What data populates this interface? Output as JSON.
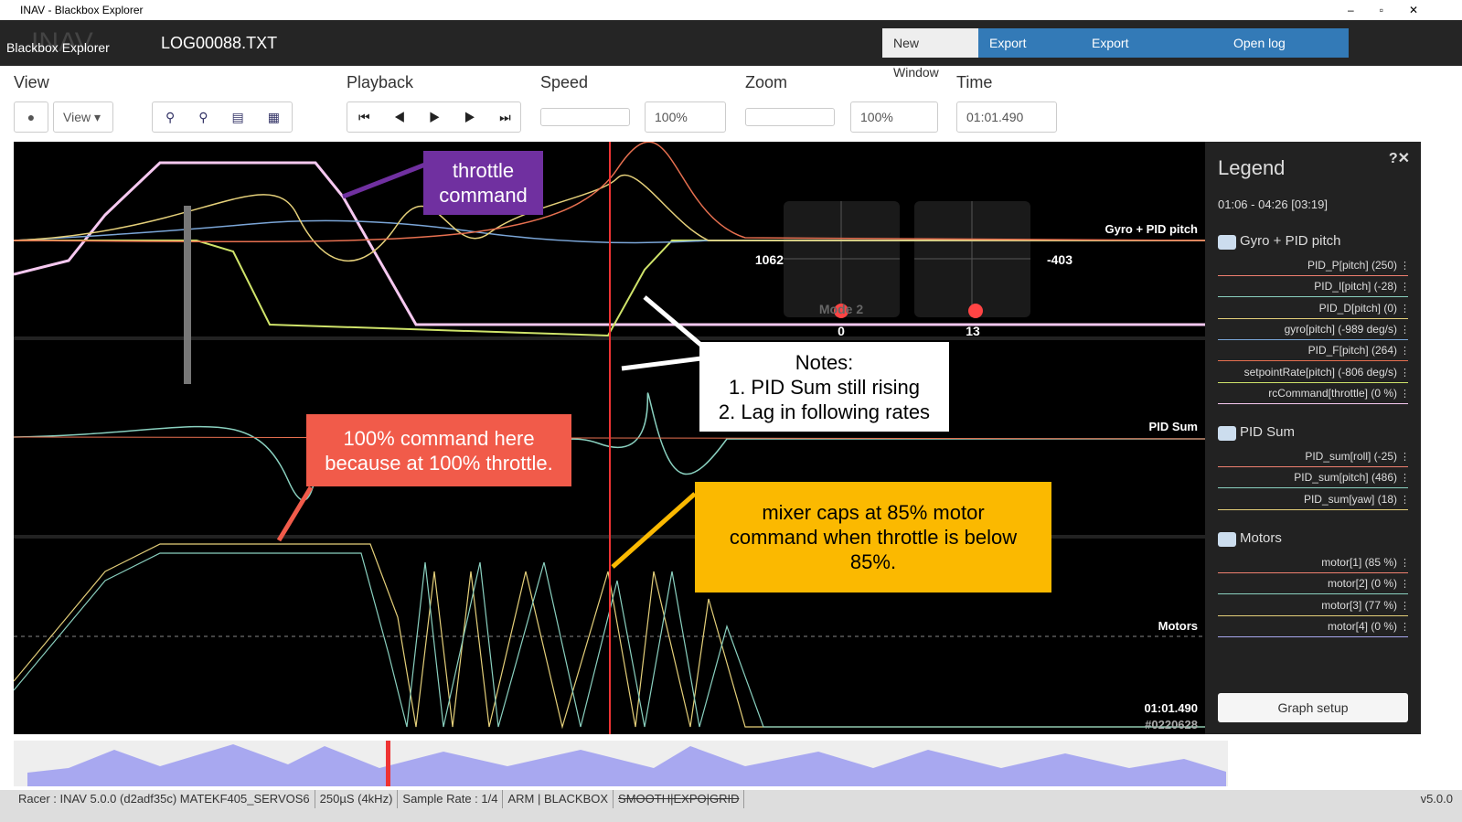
{
  "window": {
    "title": "INAV - Blackbox Explorer"
  },
  "header": {
    "app": "Blackbox Explorer",
    "brand": "INAV",
    "file": "LOG00088.TXT",
    "buttons": [
      "New Window",
      "Export video...",
      "Export Workspaces...",
      "Open log file/video"
    ]
  },
  "toolbar": {
    "view": "View",
    "view_button": "View",
    "playback": "Playback",
    "speed": "Speed",
    "speed_value": "100%",
    "zoom": "Zoom",
    "zoom_value": "100%",
    "time": "Time",
    "time_value": "01:01.490"
  },
  "graph": {
    "panels": [
      "Gyro + PID pitch",
      "PID Sum",
      "Motors"
    ],
    "sticks": {
      "left_value": "1062",
      "right_value": "-403",
      "left_bottom": "0",
      "right_bottom": "13",
      "mode": "Mode 2"
    },
    "time": "01:01.490",
    "frame": "#0220628"
  },
  "annotations": {
    "throttle": [
      "throttle",
      "command"
    ],
    "notes": [
      "Notes:",
      "1. PID Sum still rising",
      "2. Lag in following rates"
    ],
    "command": [
      "100% command here",
      "because at 100% throttle."
    ],
    "mixer": [
      "mixer caps at 85% motor",
      "command when throttle is below",
      "85%."
    ]
  },
  "legend": {
    "title": "Legend",
    "range": "01:06 - 04:26 [03:19]",
    "groups": [
      {
        "name": "Gyro + PID pitch",
        "items": [
          "PID_P[pitch] (250)",
          "PID_I[pitch] (-28)",
          "PID_D[pitch] (0)",
          "gyro[pitch] (-989 deg/s)",
          "PID_F[pitch] (264)",
          "setpointRate[pitch] (-806 deg/s)",
          "rcCommand[throttle] (0 %)"
        ]
      },
      {
        "name": "PID Sum",
        "items": [
          "PID_sum[roll] (-25)",
          "PID_sum[pitch] (486)",
          "PID_sum[yaw] (18)"
        ]
      },
      {
        "name": "Motors",
        "items": [
          "motor[1] (85 %)",
          "motor[2] (0 %)",
          "motor[3] (77 %)",
          "motor[4] (0 %)"
        ]
      }
    ],
    "setup": "Graph setup"
  },
  "status": {
    "items": [
      "Racer : INAV 5.0.0 (d2adf35c) MATEKF405_SERVOS6",
      "250µS (4kHz)",
      "Sample Rate : 1/4",
      "ARM | BLACKBOX",
      "SMOOTH|EXPO|GRID"
    ],
    "version": "v5.0.0"
  }
}
